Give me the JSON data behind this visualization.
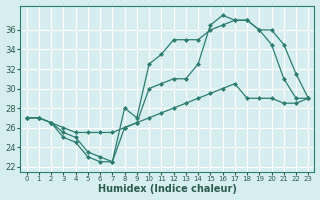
{
  "xlabel": "Humidex (Indice chaleur)",
  "bg_color": "#d6eef0",
  "grid_color": "#ffffff",
  "line_color": "#2d7d6e",
  "xlim": [
    -0.5,
    23.5
  ],
  "ylim": [
    21.5,
    38.5
  ],
  "xticks": [
    0,
    1,
    2,
    3,
    4,
    5,
    6,
    7,
    8,
    9,
    10,
    11,
    12,
    13,
    14,
    15,
    16,
    17,
    18,
    19,
    20,
    21,
    22,
    23
  ],
  "yticks": [
    22,
    24,
    26,
    28,
    30,
    32,
    34,
    36
  ],
  "line1": {
    "x": [
      0,
      1,
      2,
      3,
      4,
      5,
      6,
      7,
      8,
      9,
      10,
      11,
      12,
      13,
      14,
      15,
      16,
      17,
      18,
      19,
      20,
      21,
      22,
      23
    ],
    "y": [
      27.0,
      27.0,
      26.5,
      25.0,
      24.5,
      23.0,
      22.5,
      22.5,
      26.0,
      26.5,
      30.0,
      30.5,
      31.0,
      31.0,
      32.5,
      36.5,
      37.5,
      37.0,
      37.0,
      36.0,
      34.5,
      31.0,
      29.0,
      29.0
    ]
  },
  "line2": {
    "x": [
      0,
      1,
      2,
      3,
      4,
      5,
      6,
      7,
      8,
      9,
      10,
      11,
      12,
      13,
      14,
      15,
      16,
      17,
      18,
      19,
      20,
      21,
      22,
      23
    ],
    "y": [
      27.0,
      27.0,
      26.5,
      25.5,
      25.0,
      23.5,
      23.0,
      22.5,
      28.0,
      27.0,
      32.5,
      33.5,
      35.0,
      35.0,
      35.0,
      36.0,
      36.5,
      37.0,
      37.0,
      36.0,
      36.0,
      34.5,
      31.5,
      29.0
    ]
  },
  "line3": {
    "x": [
      0,
      1,
      2,
      3,
      4,
      5,
      6,
      7,
      8,
      9,
      10,
      11,
      12,
      13,
      14,
      15,
      16,
      17,
      18,
      19,
      20,
      21,
      22,
      23
    ],
    "y": [
      27.0,
      27.0,
      26.5,
      26.0,
      25.5,
      25.5,
      25.5,
      25.5,
      26.0,
      26.5,
      27.0,
      27.5,
      28.0,
      28.5,
      29.0,
      29.5,
      30.0,
      30.5,
      29.0,
      29.0,
      29.0,
      28.5,
      28.5,
      29.0
    ]
  }
}
